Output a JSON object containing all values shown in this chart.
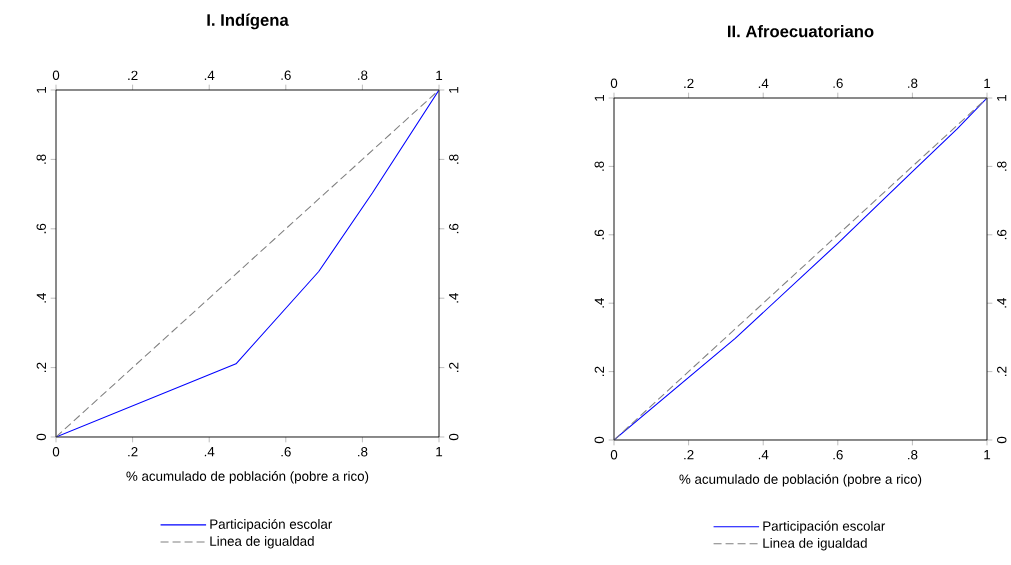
{
  "chart_data": [
    {
      "type": "line",
      "title": "I. Indígena",
      "xlabel": "% acumulado de población (pobre a rico)",
      "series": [
        {
          "name": "Participación escolar",
          "color": "#0000ff",
          "line_style": "solid",
          "x": [
            0,
            0.47,
            0.686,
            0.826,
            1
          ],
          "values": [
            0,
            0.211,
            0.477,
            0.703,
            1
          ]
        },
        {
          "name": "Linea de igualdad",
          "color": "#808080",
          "line_style": "dashed",
          "x": [
            0,
            1
          ],
          "values": [
            0,
            1
          ]
        }
      ],
      "xlim": [
        0,
        1
      ],
      "ylim": [
        0,
        1
      ],
      "xticks": [
        0,
        {
          "value": 0.2,
          "label": ".2"
        },
        {
          "value": 0.4,
          "label": ".4"
        },
        {
          "value": 0.6,
          "label": ".6"
        },
        {
          "value": 0.8,
          "label": ".8"
        },
        1
      ],
      "yticks": [
        0,
        {
          "value": 0.2,
          "label": ".2"
        },
        {
          "value": 0.4,
          "label": ".4"
        },
        {
          "value": 0.6,
          "label": ".6"
        },
        {
          "value": 0.8,
          "label": ".8"
        },
        1
      ],
      "x2lim": [
        0,
        1
      ],
      "y2lim": [
        0,
        1
      ],
      "x2ticks": [
        0,
        {
          "value": 0.2,
          "label": ".2"
        },
        {
          "value": 0.4,
          "label": ".4"
        },
        {
          "value": 0.6,
          "label": ".6"
        },
        {
          "value": 0.8,
          "label": ".8"
        },
        1
      ],
      "y2ticks": [
        0,
        {
          "value": 0.2,
          "label": ".2"
        },
        {
          "value": 0.4,
          "label": ".4"
        },
        {
          "value": 0.6,
          "label": ".6"
        },
        {
          "value": 0.8,
          "label": ".8"
        },
        1
      ],
      "grid": false,
      "legend": "bottom",
      "marker": "none"
    },
    {
      "type": "line",
      "title": "II. Afroecuatoriano",
      "xlabel": "% acumulado de población (pobre a rico)",
      "series": [
        {
          "name": "Participación escolar",
          "color": "#0000ff",
          "line_style": "solid",
          "x": [
            0,
            0.325,
            0.6,
            0.8,
            0.92,
            1
          ],
          "values": [
            0,
            0.297,
            0.575,
            0.785,
            0.91,
            1
          ]
        },
        {
          "name": "Linea de igualdad",
          "color": "#808080",
          "line_style": "dashed",
          "x": [
            0,
            1
          ],
          "values": [
            0,
            1
          ]
        }
      ],
      "xlim": [
        0,
        1
      ],
      "ylim": [
        0,
        1
      ],
      "xticks": [
        0,
        {
          "value": 0.2,
          "label": ".2"
        },
        {
          "value": 0.4,
          "label": ".4"
        },
        {
          "value": 0.6,
          "label": ".6"
        },
        {
          "value": 0.8,
          "label": ".8"
        },
        1
      ],
      "yticks": [
        0,
        {
          "value": 0.2,
          "label": ".2"
        },
        {
          "value": 0.4,
          "label": ".4"
        },
        {
          "value": 0.6,
          "label": ".6"
        },
        {
          "value": 0.8,
          "label": ".8"
        },
        1
      ],
      "x2lim": [
        0,
        1
      ],
      "y2lim": [
        0,
        1
      ],
      "x2ticks": [
        0,
        {
          "value": 0.2,
          "label": ".2"
        },
        {
          "value": 0.4,
          "label": ".4"
        },
        {
          "value": 0.6,
          "label": ".6"
        },
        {
          "value": 0.8,
          "label": ".8"
        },
        1
      ],
      "y2ticks": [
        0,
        {
          "value": 0.2,
          "label": ".2"
        },
        {
          "value": 0.4,
          "label": ".4"
        },
        {
          "value": 0.6,
          "label": ".6"
        },
        {
          "value": 0.8,
          "label": ".8"
        },
        1
      ],
      "grid": false,
      "legend": "bottom",
      "marker": "none"
    }
  ]
}
